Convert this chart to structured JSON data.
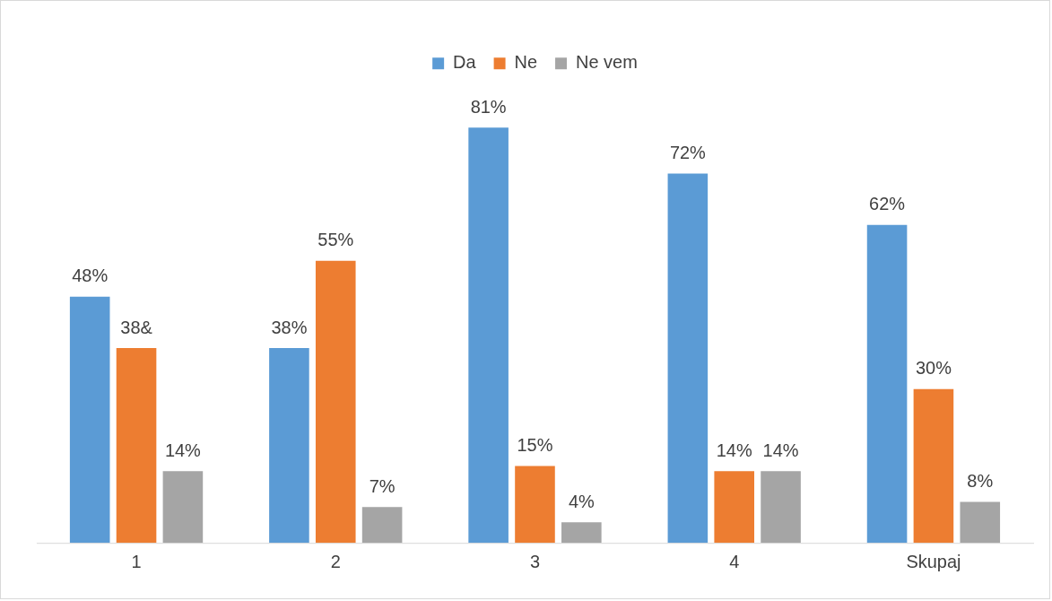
{
  "chart_data": {
    "type": "bar",
    "legend": "top",
    "categories": [
      "1",
      "2",
      "3",
      "4",
      "Skupaj"
    ],
    "series": [
      {
        "name": "Da",
        "color": "#5b9bd5",
        "values": [
          48,
          38,
          81,
          72,
          62
        ],
        "value_labels": [
          "48%",
          "38%",
          "81%",
          "72%",
          "62%"
        ]
      },
      {
        "name": "Ne",
        "color": "#ed7d31",
        "values": [
          38,
          55,
          15,
          14,
          30
        ],
        "value_labels": [
          "38&",
          "55%",
          "15%",
          "14%",
          "30%"
        ]
      },
      {
        "name": "Ne vem",
        "color": "#a5a5a5",
        "values": [
          14,
          7,
          4,
          14,
          8
        ],
        "value_labels": [
          "14%",
          "7%",
          "4%",
          "14%",
          "8%"
        ]
      }
    ]
  }
}
